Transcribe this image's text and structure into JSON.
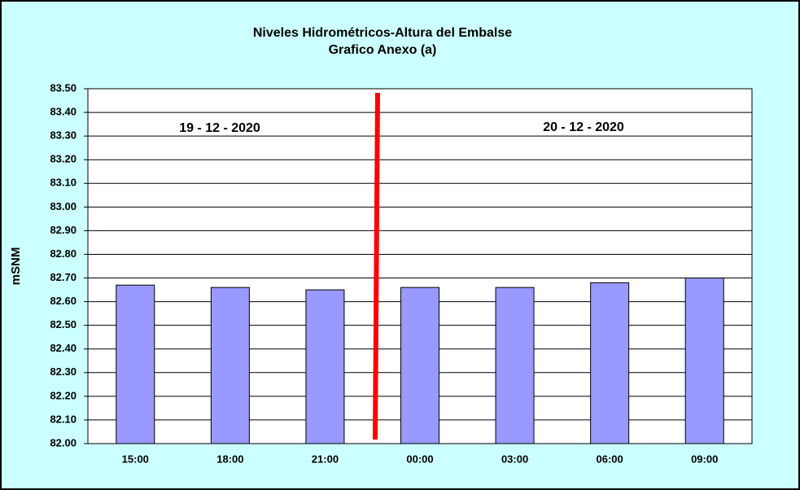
{
  "chart_data": {
    "type": "bar",
    "title": "Niveles Hidrométricos-Altura del Embalse",
    "subtitle": "Grafico Anexo (a)",
    "y_label": "mSNM",
    "annotations": [
      "19 - 12 - 2020",
      "20 - 12 - 2020"
    ],
    "categories": [
      "15:00",
      "18:00",
      "21:00",
      "00:00",
      "03:00",
      "06:00",
      "09:00"
    ],
    "values": [
      82.67,
      82.66,
      82.65,
      82.66,
      82.66,
      82.68,
      82.7
    ],
    "color": "#9999ff",
    "ylim": [
      82.0,
      83.5
    ],
    "yticks": [
      {
        "value": 82.0,
        "label": "82.00"
      },
      {
        "value": 82.1,
        "label": "82.10"
      },
      {
        "value": 82.2,
        "label": "82.20"
      },
      {
        "value": 82.3,
        "label": "82.30"
      },
      {
        "value": 82.4,
        "label": "82.40"
      },
      {
        "value": 82.5,
        "label": "82.50"
      },
      {
        "value": 82.6,
        "label": "82.60"
      },
      {
        "value": 82.7,
        "label": "82.70"
      },
      {
        "value": 82.8,
        "label": "82.80"
      },
      {
        "value": 82.9,
        "label": "82.90"
      },
      {
        "value": 83.0,
        "label": "83.00"
      },
      {
        "value": 83.1,
        "label": "83.10"
      },
      {
        "value": 83.2,
        "label": "83.20"
      },
      {
        "value": 83.3,
        "label": "83.30"
      },
      {
        "value": 83.4,
        "label": "83.40"
      },
      {
        "value": 83.5,
        "label": "83.50"
      }
    ],
    "grid": true
  }
}
